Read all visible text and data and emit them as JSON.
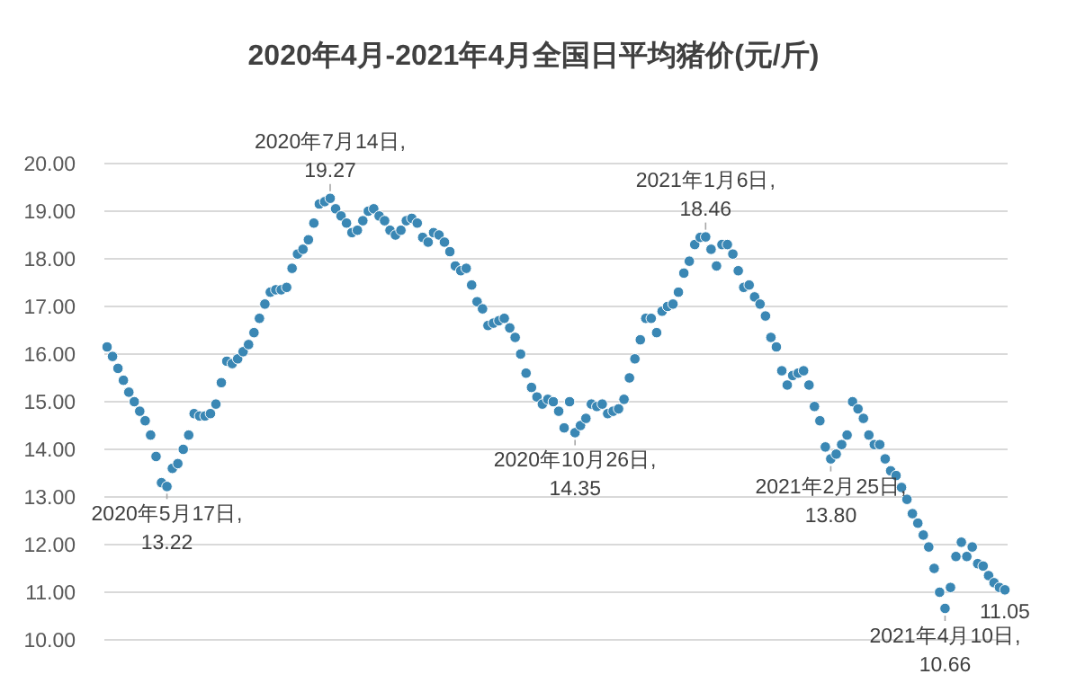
{
  "chart_data": {
    "type": "scatter",
    "title": "2020年4月-2021年4月全国日平均猪价(元/斤)",
    "marker": "circle",
    "grid": "y",
    "ylim": [
      10,
      20
    ],
    "yticks": [
      {
        "value": 10,
        "label": "10.00"
      },
      {
        "value": 11,
        "label": "11.00"
      },
      {
        "value": 12,
        "label": "12.00"
      },
      {
        "value": 13,
        "label": "13.00"
      },
      {
        "value": 14,
        "label": "14.00"
      },
      {
        "value": 15,
        "label": "15.00"
      },
      {
        "value": 16,
        "label": "16.00"
      },
      {
        "value": 17,
        "label": "17.00"
      },
      {
        "value": 18,
        "label": "18.00"
      },
      {
        "value": 19,
        "label": "19.00"
      },
      {
        "value": 20,
        "label": "20.00"
      }
    ],
    "tick_labels": "y",
    "categories": [
      null,
      null,
      null,
      null,
      null,
      null,
      null,
      null,
      null,
      null,
      null,
      null,
      null,
      null,
      null,
      null,
      null,
      null,
      null,
      null,
      null,
      null,
      null,
      null,
      null,
      null,
      null,
      null,
      null,
      null,
      null,
      null,
      null,
      null,
      null,
      null,
      null,
      null,
      null,
      null,
      null,
      null,
      null,
      null,
      null,
      null,
      null,
      null,
      null,
      null,
      null,
      null,
      null,
      null,
      null,
      null,
      null,
      null,
      null,
      null,
      null,
      null,
      null,
      null,
      null,
      null,
      null,
      null,
      null,
      null,
      null,
      null,
      null,
      null,
      null,
      null,
      null,
      null,
      null,
      null,
      null,
      null,
      null,
      null,
      null,
      null,
      null,
      null,
      null,
      null,
      null,
      null,
      null,
      null,
      null,
      null,
      null,
      null,
      null,
      null,
      null,
      null,
      null,
      null,
      null,
      null,
      null,
      null,
      null,
      null,
      null,
      null,
      null,
      null,
      null,
      null,
      null,
      null,
      null,
      null,
      null,
      null,
      null,
      null,
      null,
      null,
      null,
      null,
      null,
      null,
      null,
      null,
      null,
      null,
      null,
      null,
      null,
      null,
      null,
      null,
      null,
      null,
      null,
      null,
      null,
      null,
      null,
      null,
      null,
      null,
      null,
      null,
      null,
      null,
      null,
      null,
      null,
      null,
      null,
      null,
      null,
      null,
      null,
      null,
      null,
      null
    ],
    "series": [
      {
        "color": "#3a87b4",
        "values": [
          16.15,
          15.95,
          15.7,
          15.45,
          15.2,
          15.0,
          14.8,
          14.6,
          14.3,
          13.85,
          13.3,
          13.22,
          13.6,
          13.7,
          14.0,
          14.3,
          14.75,
          14.7,
          14.7,
          14.75,
          14.95,
          15.4,
          15.85,
          15.8,
          15.9,
          16.05,
          16.2,
          16.45,
          16.75,
          17.05,
          17.3,
          17.35,
          17.35,
          17.4,
          17.8,
          18.1,
          18.2,
          18.4,
          18.75,
          19.15,
          19.2,
          19.27,
          19.05,
          18.9,
          18.75,
          18.55,
          18.6,
          18.8,
          19.0,
          19.05,
          18.9,
          18.8,
          18.6,
          18.5,
          18.6,
          18.8,
          18.85,
          18.75,
          18.45,
          18.35,
          18.55,
          18.5,
          18.35,
          18.15,
          17.85,
          17.75,
          17.8,
          17.45,
          17.1,
          16.95,
          16.6,
          16.65,
          16.7,
          16.75,
          16.55,
          16.35,
          16.0,
          15.6,
          15.3,
          15.1,
          14.95,
          15.05,
          15.0,
          14.8,
          14.45,
          15.0,
          14.35,
          14.5,
          14.65,
          14.95,
          14.9,
          14.95,
          14.75,
          14.8,
          14.85,
          15.05,
          15.5,
          15.9,
          16.3,
          16.75,
          16.75,
          16.45,
          16.9,
          17.0,
          17.05,
          17.3,
          17.7,
          17.95,
          18.3,
          18.45,
          18.46,
          18.2,
          17.85,
          18.3,
          18.3,
          18.1,
          17.75,
          17.4,
          17.45,
          17.2,
          17.05,
          16.8,
          16.35,
          16.15,
          15.65,
          15.35,
          15.55,
          15.6,
          15.65,
          15.35,
          14.9,
          14.6,
          14.05,
          13.8,
          13.9,
          14.1,
          14.3,
          15.0,
          14.85,
          14.65,
          14.3,
          14.1,
          14.1,
          13.8,
          13.55,
          13.45,
          13.2,
          12.95,
          12.65,
          12.45,
          12.2,
          11.95,
          11.5,
          11.0,
          10.66,
          11.1,
          11.75,
          12.05,
          11.75,
          11.95,
          11.6,
          11.55,
          11.35,
          11.2,
          11.1,
          11.05
        ]
      }
    ],
    "annotations": [
      {
        "text": "2020年5月17日,\n13.22",
        "y": 13.22
      },
      {
        "text": "2020年7月14日,\n19.27",
        "y": 19.27
      },
      {
        "text": "2020年10月26日,\n14.35",
        "y": 14.35
      },
      {
        "text": "2021年1月6日,\n18.46",
        "y": 18.46
      },
      {
        "text": "2021年2月25日,\n13.80",
        "y": 13.8
      },
      {
        "text": "2021年4月10日,\n10.66",
        "y": 10.66
      },
      {
        "text": "11.05",
        "y": 11.05
      }
    ]
  }
}
